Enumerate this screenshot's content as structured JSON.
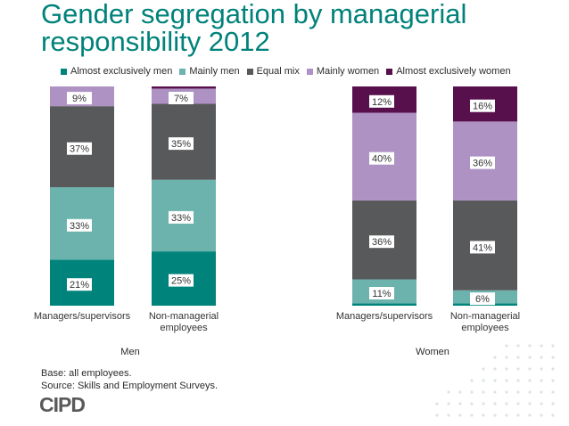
{
  "title": "Gender segregation by managerial responsibility 2012",
  "legend": [
    {
      "label": "Almost exclusively men",
      "color": "#00837b"
    },
    {
      "label": "Mainly men",
      "color": "#6cb2ad"
    },
    {
      "label": "Equal mix",
      "color": "#58595b"
    },
    {
      "label": "Mainly women",
      "color": "#ae92c4"
    },
    {
      "label": "Almost exclusively women",
      "color": "#58104d"
    }
  ],
  "chart_data": {
    "type": "bar",
    "stacked": true,
    "ylim": [
      0,
      100
    ],
    "groups": [
      "Men",
      "Women"
    ],
    "categories": [
      {
        "label": "Managers/supervisors",
        "group": "Men"
      },
      {
        "label": "Non-managerial employees",
        "group": "Men"
      },
      {
        "label": "Managers/supervisors",
        "group": "Women"
      },
      {
        "label": "Non-managerial employees",
        "group": "Women"
      }
    ],
    "series": [
      {
        "name": "Almost exclusively men",
        "color": "#00837b",
        "values": [
          21,
          25,
          1,
          1
        ]
      },
      {
        "name": "Mainly men",
        "color": "#6cb2ad",
        "values": [
          33,
          33,
          11,
          6
        ]
      },
      {
        "name": "Equal mix",
        "color": "#58595b",
        "values": [
          37,
          35,
          36,
          41
        ]
      },
      {
        "name": "Mainly women",
        "color": "#ae92c4",
        "values": [
          9,
          7,
          40,
          36
        ]
      },
      {
        "name": "Almost exclusively women",
        "color": "#58104d",
        "values": [
          0,
          1,
          12,
          16
        ]
      }
    ],
    "data_labels": [
      [
        "21%",
        "33%",
        "37%",
        "9%",
        ""
      ],
      [
        "25%",
        "33%",
        "35%",
        "7%",
        ""
      ],
      [
        "",
        "11%",
        "36%",
        "40%",
        "12%"
      ],
      [
        "",
        "6%",
        "41%",
        "36%",
        "16%"
      ]
    ]
  },
  "group_labels": {
    "men": "Men",
    "women": "Women"
  },
  "footer": {
    "base": "Base: all employees.",
    "source": "Source: Skills and Employment Surveys."
  },
  "logo": "CIPD"
}
